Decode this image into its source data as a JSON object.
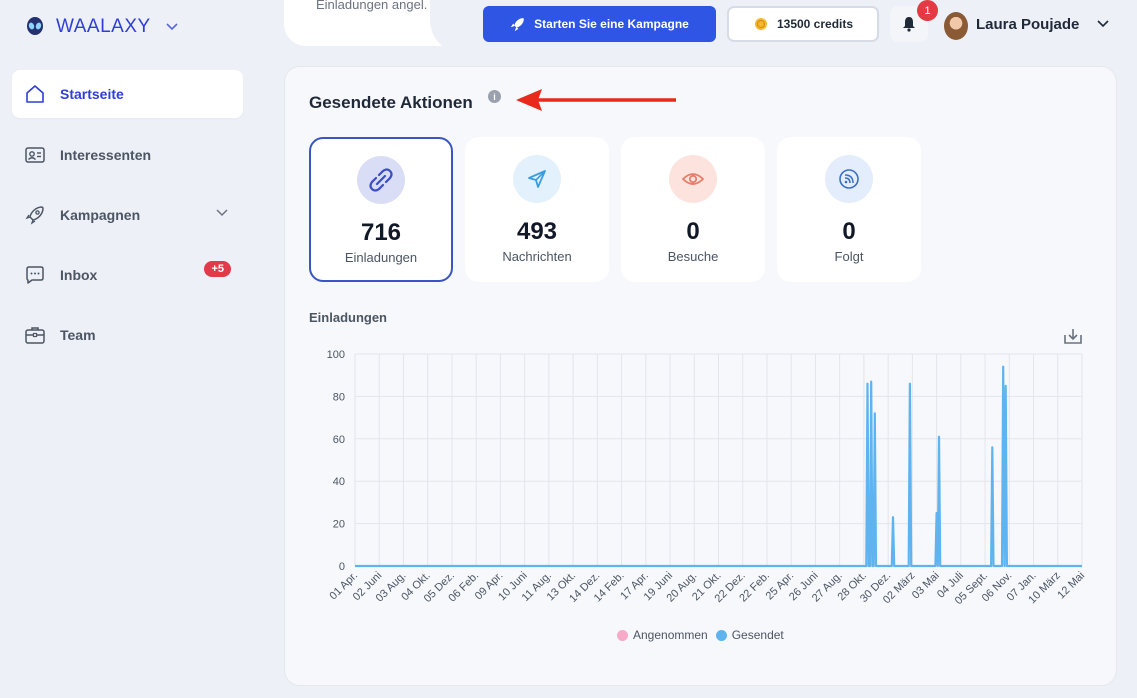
{
  "app": {
    "name": "WAALAXY"
  },
  "sidebar": {
    "items": [
      {
        "label": "Startseite",
        "icon": "home-icon",
        "active": true
      },
      {
        "label": "Interessenten",
        "icon": "contacts-icon"
      },
      {
        "label": "Kampagnen",
        "icon": "rocket-icon"
      },
      {
        "label": "Inbox",
        "icon": "chat-icon",
        "badge": "+5"
      },
      {
        "label": "Team",
        "icon": "briefcase-icon"
      }
    ]
  },
  "topbar": {
    "faded_text": "Einladungen angel.",
    "campaign_button": "Starten Sie eine Kampagne",
    "credits": "13500 credits",
    "notification_count": "1",
    "user_name": "Laura Poujade"
  },
  "main": {
    "title": "Gesendete Aktionen",
    "stats": [
      {
        "value": "716",
        "label": "Einladungen",
        "icon": "link-icon",
        "color": "#d9ddf5",
        "icon_color": "#3b4fc4"
      },
      {
        "value": "493",
        "label": "Nachrichten",
        "icon": "paper-plane-icon",
        "color": "#e2f1fb",
        "icon_color": "#3b9ddd"
      },
      {
        "value": "0",
        "label": "Besuche",
        "icon": "eye-icon",
        "color": "#fde3de",
        "icon_color": "#e57f6c"
      },
      {
        "value": "0",
        "label": "Folgt",
        "icon": "rss-icon",
        "color": "#e3edfb",
        "icon_color": "#3b6fc4"
      }
    ],
    "chart_title": "Einladungen"
  },
  "chart_data": {
    "type": "line",
    "title": "Einladungen",
    "ylim": [
      0,
      100
    ],
    "y_ticks": [
      0,
      20,
      40,
      60,
      80,
      100
    ],
    "x_ticks": [
      "01 Apr.",
      "02 Juni",
      "03 Aug.",
      "04 Okt.",
      "05 Dez.",
      "06 Feb.",
      "09 Apr.",
      "10 Juni",
      "11 Aug.",
      "13 Okt.",
      "14 Dez.",
      "14 Feb.",
      "17 Apr.",
      "19 Juni",
      "20 Aug.",
      "21 Okt.",
      "22 Dez.",
      "22 Feb.",
      "25 Apr.",
      "26 Juni",
      "27 Aug.",
      "28 Okt.",
      "30 Dez.",
      "02 März",
      "03 Mai",
      "04 Juli",
      "05 Sept.",
      "06 Nov.",
      "07 Jan.",
      "10 März",
      "12 Mai"
    ],
    "series": [
      {
        "name": "Angenommen",
        "color": "#f7aac8",
        "values": []
      },
      {
        "name": "Gesendet",
        "color": "#5fb3ee",
        "spikes": [
          {
            "x": 21.15,
            "y": 86
          },
          {
            "x": 21.3,
            "y": 87
          },
          {
            "x": 21.45,
            "y": 72
          },
          {
            "x": 22.2,
            "y": 23
          },
          {
            "x": 22.9,
            "y": 86
          },
          {
            "x": 24.0,
            "y": 25
          },
          {
            "x": 24.1,
            "y": 61
          },
          {
            "x": 26.3,
            "y": 56
          },
          {
            "x": 26.75,
            "y": 94
          },
          {
            "x": 26.85,
            "y": 85
          }
        ]
      }
    ],
    "grid": true,
    "legend": "bottom-center"
  }
}
